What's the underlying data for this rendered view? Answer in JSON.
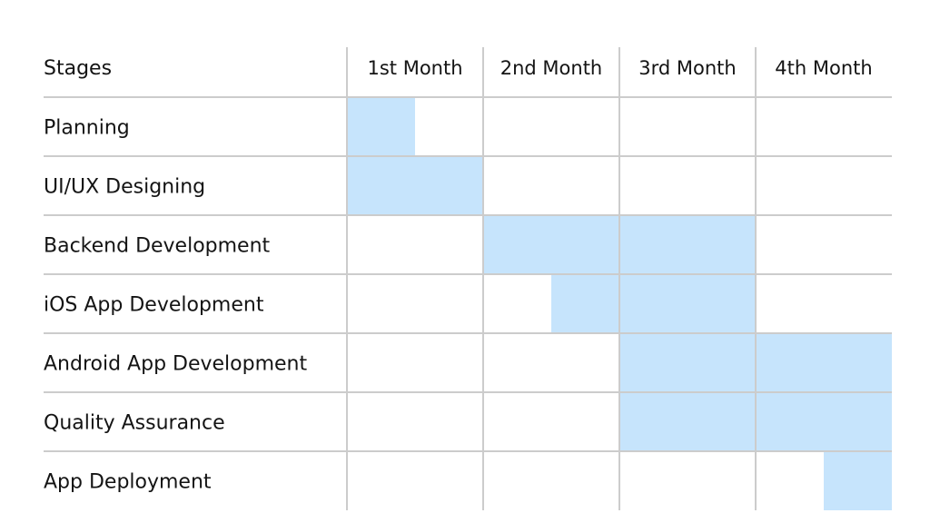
{
  "chart_data": {
    "type": "gantt",
    "header_label": "Stages",
    "periods": [
      "1st Month",
      "2nd Month",
      "3rd Month",
      "4th Month"
    ],
    "tasks": [
      {
        "name": "Planning",
        "start": 0,
        "end": 0.5
      },
      {
        "name": "UI/UX Designing",
        "start": 0,
        "end": 1
      },
      {
        "name": "Backend Development",
        "start": 1,
        "end": 3
      },
      {
        "name": "iOS App Development",
        "start": 1.5,
        "end": 3
      },
      {
        "name": "Android App Development",
        "start": 2,
        "end": 4
      },
      {
        "name": "Quality Assurance",
        "start": 2,
        "end": 4
      },
      {
        "name": "App Deployment",
        "start": 3.5,
        "end": 4
      }
    ],
    "colors": {
      "bar": "#c6e4fc",
      "grid": "#cccccc"
    }
  }
}
